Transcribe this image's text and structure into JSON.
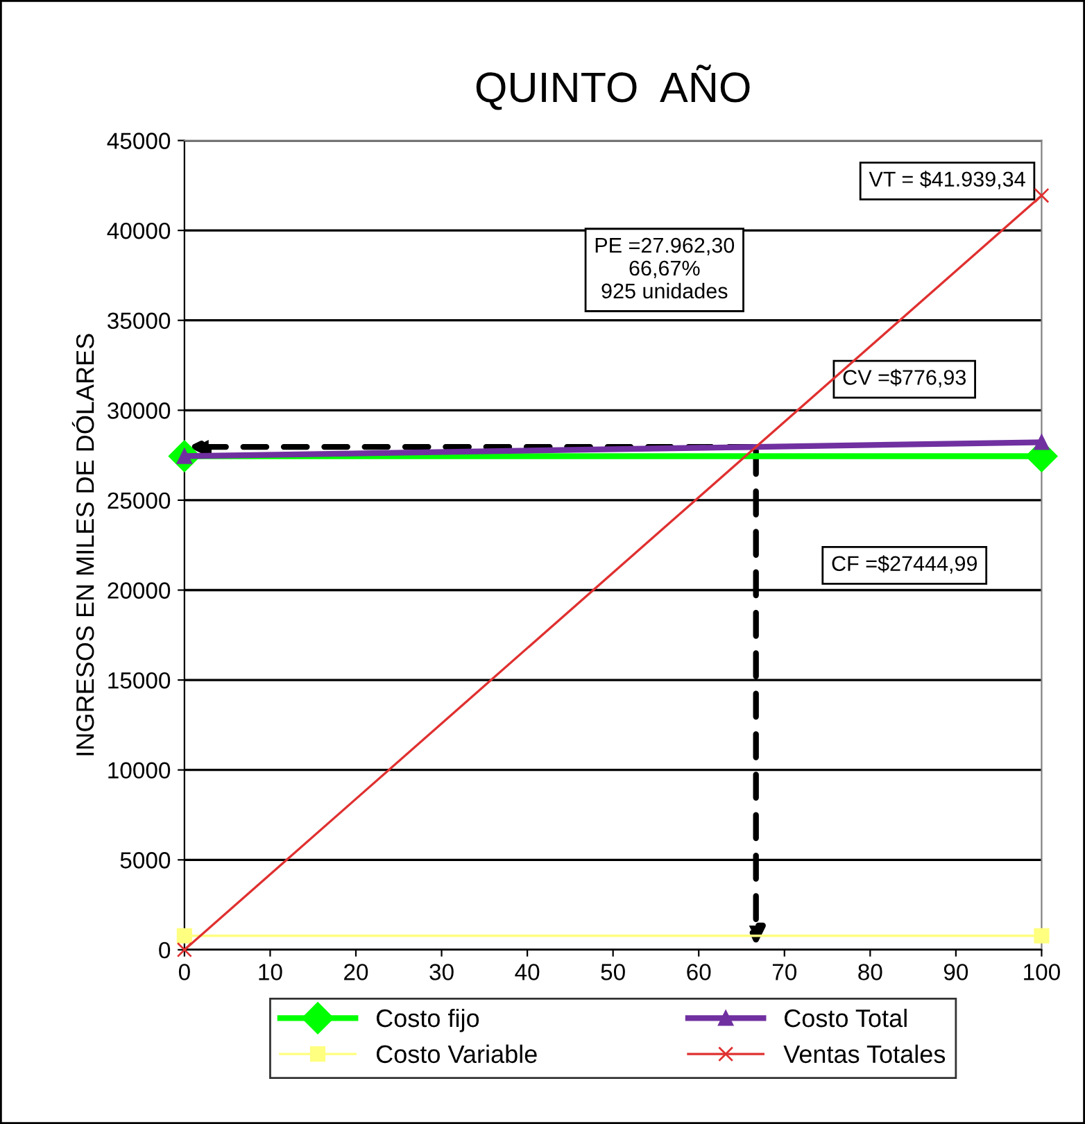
{
  "chart_data": {
    "type": "line",
    "title": "QUINTO  AÑO",
    "ylabel": "INGRESOS EN MILES DE DÓLARES",
    "x": [
      0,
      100
    ],
    "series": [
      {
        "name": "Costo fijo",
        "color": "#00ff00",
        "values": [
          27445,
          27445
        ],
        "marker": "diamond"
      },
      {
        "name": "Costo Variable",
        "color": "#ffff80",
        "values": [
          777,
          777
        ],
        "marker": "square"
      },
      {
        "name": "Costo Total",
        "color": "#7030a0",
        "values": [
          27445,
          28222
        ],
        "marker": "triangle"
      },
      {
        "name": "Ventas Totales",
        "color": "#e03030",
        "values": [
          0,
          41939
        ],
        "marker": "cross"
      }
    ],
    "xlim": [
      0,
      100
    ],
    "xticks": [
      0,
      10,
      20,
      30,
      40,
      50,
      60,
      70,
      80,
      90,
      100
    ],
    "ylim": [
      0,
      45000
    ],
    "yticks": [
      0,
      5000,
      10000,
      15000,
      20000,
      25000,
      30000,
      35000,
      40000,
      45000
    ],
    "grid": "y",
    "legend": "bottom",
    "line_style": "solid",
    "annotations": [
      "VT = $41.939,34",
      "PE =27.962,30\n66,67%\n925 unidades",
      "CV =$776,93",
      "CF =$27444,99"
    ]
  }
}
